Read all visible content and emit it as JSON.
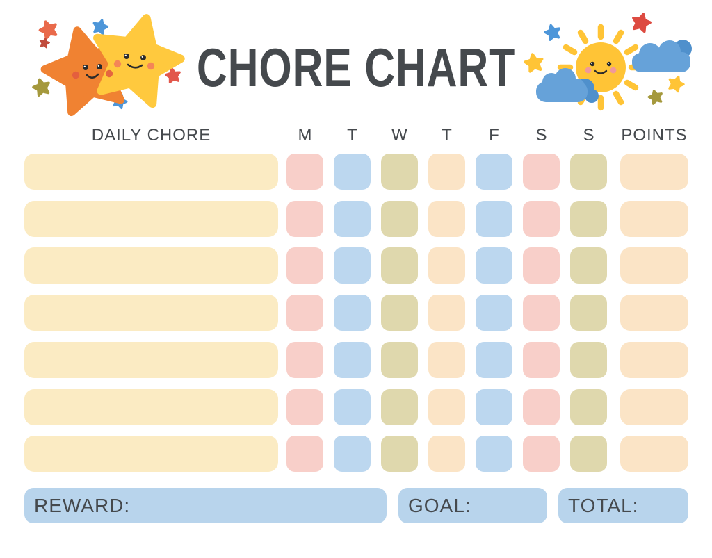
{
  "title": "CHORE CHART",
  "palette": {
    "text": "#45494d",
    "cream": "#fbebc3",
    "pink": "#f8cfc9",
    "blue": "#bcd7ef",
    "olive": "#dfd8ad",
    "peach": "#fbe4c6",
    "footerblue": "#b8d4ec",
    "star-orange": "#f08232",
    "star-yellow": "#ffc93e",
    "sun-yellow": "#ffc436",
    "cloud-blue": "#66a2d9",
    "cloud-blue-dark": "#4f90cc",
    "accent-red": "#e2574b",
    "accent-dark-red": "#c04b3c",
    "accent-blue": "#4d96d9",
    "accent-olive": "#a5993d"
  },
  "table": {
    "daily_chore_header": "DAILY CHORE",
    "day_headers": [
      "M",
      "T",
      "W",
      "T",
      "F",
      "S",
      "S"
    ],
    "points_header": "POINTS",
    "rows": 7,
    "day_colors": [
      "pink",
      "blue",
      "olive",
      "peach",
      "blue",
      "pink",
      "olive"
    ],
    "points_color": "peach"
  },
  "footer": {
    "reward_label": "REWARD:",
    "goal_label": "GOAL:",
    "total_label": "TOTAL:"
  },
  "decorations": {
    "left": "two-smiling-stars-with-sparkles",
    "right": "smiling-sun-with-clouds-and-sparkles"
  }
}
